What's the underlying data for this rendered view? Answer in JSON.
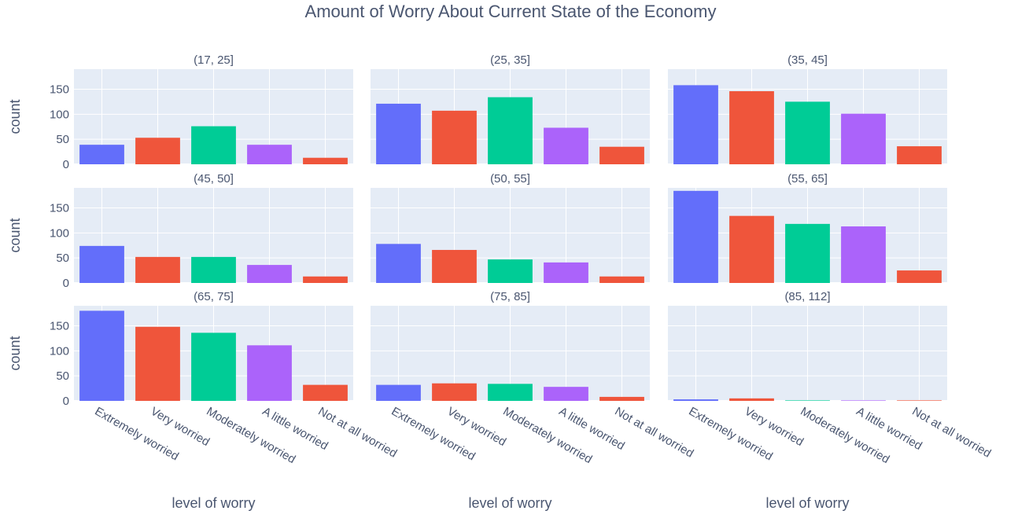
{
  "chart_data": {
    "type": "bar",
    "title": "Amount of Worry About Current State of the Economy",
    "xlabel": "level of worry",
    "ylabel": "count",
    "ylim": [
      0,
      190
    ],
    "yticks": [
      0,
      50,
      100,
      150
    ],
    "grid": true,
    "categories": [
      "Extremely worried",
      "Very worried",
      "Moderately worried",
      "A little worried",
      "Not at all worried"
    ],
    "colors": [
      "#636efa",
      "#ef553b",
      "#00cc96",
      "#ab63fa",
      "#ef553b"
    ],
    "background": "#e5ecf6",
    "facets": [
      {
        "label": "(17, 25]",
        "values": [
          39,
          53,
          76,
          39,
          13
        ]
      },
      {
        "label": "(25, 35]",
        "values": [
          121,
          107,
          134,
          73,
          35
        ]
      },
      {
        "label": "(35, 45]",
        "values": [
          158,
          146,
          125,
          101,
          36
        ]
      },
      {
        "label": "(45, 50]",
        "values": [
          74,
          52,
          52,
          36,
          13
        ]
      },
      {
        "label": "(50, 55]",
        "values": [
          78,
          66,
          47,
          41,
          13
        ]
      },
      {
        "label": "(55, 65]",
        "values": [
          184,
          134,
          118,
          113,
          25
        ]
      },
      {
        "label": "(65, 75]",
        "values": [
          180,
          148,
          136,
          111,
          32
        ]
      },
      {
        "label": "(75, 85]",
        "values": [
          32,
          35,
          34,
          28,
          8
        ]
      },
      {
        "label": "(85, 112]",
        "values": [
          3,
          5,
          1,
          1,
          1
        ]
      }
    ]
  }
}
